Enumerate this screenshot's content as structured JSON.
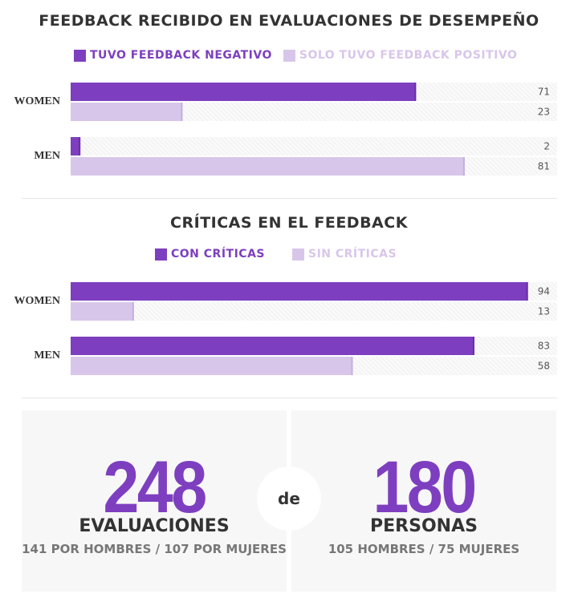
{
  "colors": {
    "primary": "#7d3fbf",
    "secondary": "#d8c6ea",
    "bg_stripe": "#f2f2f2"
  },
  "chart_data": [
    {
      "type": "bar",
      "title": "FEEDBACK RECIBIDO EN EVALUACIONES DE DESEMPEÑO",
      "categories": [
        "WOMEN",
        "MEN"
      ],
      "series": [
        {
          "name": "TUVO FEEDBACK NEGATIVO",
          "values": [
            71,
            2
          ]
        },
        {
          "name": "SOLO TUVO FEEDBACK POSITIVO",
          "values": [
            23,
            81
          ]
        }
      ],
      "xlim": [
        0,
        100
      ],
      "orientation": "horizontal"
    },
    {
      "type": "bar",
      "title": "CRÍTICAS EN EL FEEDBACK",
      "categories": [
        "WOMEN",
        "MEN"
      ],
      "series": [
        {
          "name": "CON CRÍTICAS",
          "values": [
            94,
            83
          ]
        },
        {
          "name": "SIN CRÍTICAS",
          "values": [
            13,
            58
          ]
        }
      ],
      "xlim": [
        0,
        100
      ],
      "orientation": "horizontal"
    }
  ],
  "stats": {
    "evaluations": {
      "number": "248",
      "label": "EVALUACIONES",
      "sub": "141 POR HOMBRES / 107 POR MUJERES"
    },
    "connector": "de",
    "people": {
      "number": "180",
      "label": "PERSONAS",
      "sub": "105 HOMBRES / 75 MUJERES"
    }
  }
}
